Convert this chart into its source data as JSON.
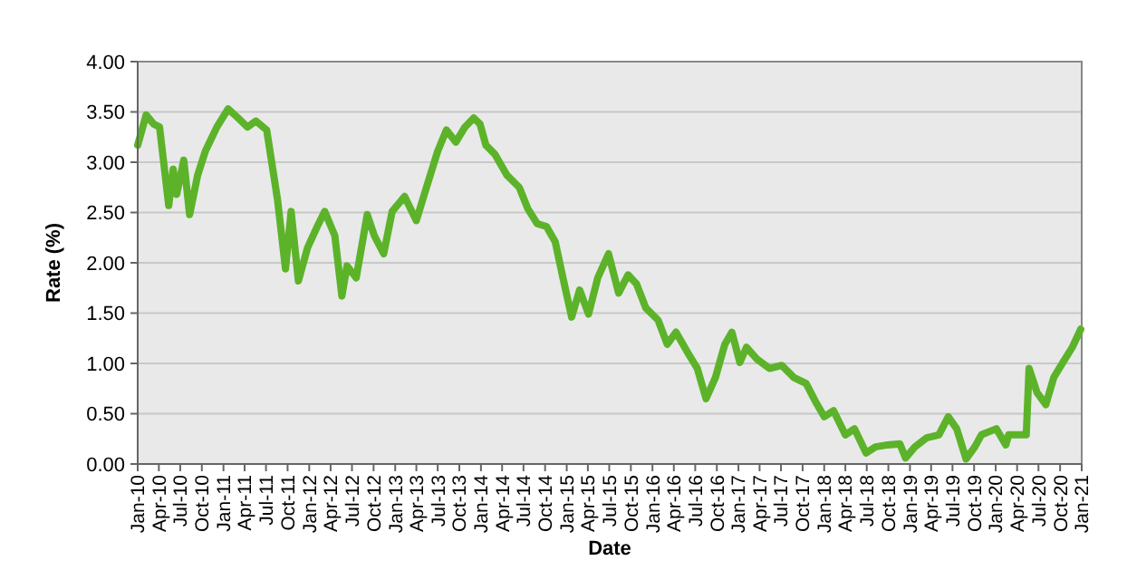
{
  "chart_data": {
    "type": "line",
    "xlabel": "Date",
    "ylabel": "Rate (%)",
    "x": [
      "2010-01-01",
      "2010-02-06",
      "2010-03-10",
      "2010-04-04",
      "2010-04-22",
      "2010-05-13",
      "2010-06-01",
      "2010-06-16",
      "2010-07-16",
      "2010-08-10",
      "2010-09-13",
      "2010-10-16",
      "2010-12-04",
      "2011-01-21",
      "2011-03-04",
      "2011-04-13",
      "2011-05-19",
      "2011-07-04",
      "2011-07-22",
      "2011-08-19",
      "2011-09-22",
      "2011-10-16",
      "2011-11-16",
      "2011-12-25",
      "2012-02-04",
      "2012-03-07",
      "2012-04-19",
      "2012-05-19",
      "2012-06-10",
      "2012-07-19",
      "2012-09-04",
      "2012-10-04",
      "2012-11-13",
      "2012-12-19",
      "2013-02-10",
      "2013-04-01",
      "2013-05-10",
      "2013-07-01",
      "2013-08-07",
      "2013-09-16",
      "2013-10-25",
      "2013-12-01",
      "2013-12-28",
      "2014-01-22",
      "2014-03-01",
      "2014-04-22",
      "2014-06-13",
      "2014-07-19",
      "2014-08-28",
      "2014-10-07",
      "2014-11-13",
      "2014-12-16",
      "2015-01-22",
      "2015-02-25",
      "2015-04-04",
      "2015-05-13",
      "2015-06-28",
      "2015-08-10",
      "2015-09-19",
      "2015-10-25",
      "2015-12-04",
      "2016-01-25",
      "2016-03-04",
      "2016-04-10",
      "2016-06-01",
      "2016-07-10",
      "2016-08-16",
      "2016-09-25",
      "2016-11-04",
      "2016-12-04",
      "2017-01-07",
      "2017-02-04",
      "2017-03-22",
      "2017-05-13",
      "2017-07-04",
      "2017-08-25",
      "2017-10-16",
      "2017-11-25",
      "2018-01-01",
      "2018-02-10",
      "2018-04-01",
      "2018-05-10",
      "2018-06-28",
      "2018-08-07",
      "2018-09-28",
      "2018-11-19",
      "2018-12-13",
      "2019-01-22",
      "2019-03-13",
      "2019-05-04",
      "2019-06-13",
      "2019-07-19",
      "2019-08-28",
      "2019-10-04",
      "2019-11-01",
      "2020-01-04",
      "2020-02-13",
      "2020-02-25",
      "2020-05-10",
      "2020-05-22",
      "2020-06-25",
      "2020-08-01",
      "2020-09-04",
      "2020-10-13",
      "2020-11-22",
      "2020-12-28"
    ],
    "series": [
      {
        "color": "#5cb32a",
        "values": [
          3.17,
          3.47,
          3.38,
          3.35,
          2.99,
          2.57,
          2.93,
          2.68,
          3.02,
          2.48,
          2.87,
          3.11,
          3.35,
          3.53,
          3.44,
          3.35,
          3.41,
          3.32,
          3.05,
          2.63,
          1.94,
          2.51,
          1.82,
          2.15,
          2.36,
          2.51,
          2.27,
          1.67,
          1.97,
          1.85,
          2.48,
          2.27,
          2.09,
          2.51,
          2.66,
          2.42,
          2.72,
          3.11,
          3.32,
          3.2,
          3.35,
          3.44,
          3.38,
          3.17,
          3.08,
          2.87,
          2.75,
          2.54,
          2.39,
          2.36,
          2.21,
          1.85,
          1.46,
          1.73,
          1.49,
          1.85,
          2.09,
          1.7,
          1.88,
          1.79,
          1.55,
          1.43,
          1.19,
          1.31,
          1.1,
          0.95,
          0.65,
          0.86,
          1.19,
          1.31,
          1.01,
          1.16,
          1.04,
          0.95,
          0.98,
          0.86,
          0.8,
          0.62,
          0.47,
          0.53,
          0.29,
          0.35,
          0.11,
          0.17,
          0.19,
          0.2,
          0.06,
          0.17,
          0.26,
          0.29,
          0.47,
          0.35,
          0.05,
          0.17,
          0.29,
          0.35,
          0.19,
          0.29,
          0.29,
          0.95,
          0.71,
          0.59,
          0.86,
          1.01,
          1.16,
          1.34
        ]
      }
    ],
    "xlim": [
      "2010-01-01",
      "2021-01-01"
    ],
    "xticks": [
      {
        "value": "2010-01",
        "label": "Jan-10"
      },
      {
        "value": "2010-04",
        "label": "Apr-10"
      },
      {
        "value": "2010-07",
        "label": "Jul-10"
      },
      {
        "value": "2010-10",
        "label": "Oct-10"
      },
      {
        "value": "2011-01",
        "label": "Jan-11"
      },
      {
        "value": "2011-04",
        "label": "Apr-11"
      },
      {
        "value": "2011-07",
        "label": "Jul-11"
      },
      {
        "value": "2011-10",
        "label": "Oct-11"
      },
      {
        "value": "2012-01",
        "label": "Jan-12"
      },
      {
        "value": "2012-04",
        "label": "Apr-12"
      },
      {
        "value": "2012-07",
        "label": "Jul-12"
      },
      {
        "value": "2012-10",
        "label": "Oct-12"
      },
      {
        "value": "2013-01",
        "label": "Jan-13"
      },
      {
        "value": "2013-04",
        "label": "Apr-13"
      },
      {
        "value": "2013-07",
        "label": "Jul-13"
      },
      {
        "value": "2013-10",
        "label": "Oct-13"
      },
      {
        "value": "2014-01",
        "label": "Jan-14"
      },
      {
        "value": "2014-04",
        "label": "Apr-14"
      },
      {
        "value": "2014-07",
        "label": "Jul-14"
      },
      {
        "value": "2014-10",
        "label": "Oct-14"
      },
      {
        "value": "2015-01",
        "label": "Jan-15"
      },
      {
        "value": "2015-04",
        "label": "Apr-15"
      },
      {
        "value": "2015-07",
        "label": "Jul-15"
      },
      {
        "value": "2015-10",
        "label": "Oct-15"
      },
      {
        "value": "2016-01",
        "label": "Jan-16"
      },
      {
        "value": "2016-04",
        "label": "Apr-16"
      },
      {
        "value": "2016-07",
        "label": "Jul-16"
      },
      {
        "value": "2016-10",
        "label": "Oct-16"
      },
      {
        "value": "2017-01",
        "label": "Jan-17"
      },
      {
        "value": "2017-04",
        "label": "Apr-17"
      },
      {
        "value": "2017-07",
        "label": "Jul-17"
      },
      {
        "value": "2017-10",
        "label": "Oct-17"
      },
      {
        "value": "2018-01",
        "label": "Jan-18"
      },
      {
        "value": "2018-04",
        "label": "Apr-18"
      },
      {
        "value": "2018-07",
        "label": "Jul-18"
      },
      {
        "value": "2018-10",
        "label": "Oct-18"
      },
      {
        "value": "2019-01",
        "label": "Jan-19"
      },
      {
        "value": "2019-04",
        "label": "Apr-19"
      },
      {
        "value": "2019-07",
        "label": "Jul-19"
      },
      {
        "value": "2019-10",
        "label": "Oct-19"
      },
      {
        "value": "2020-01",
        "label": "Jan-20"
      },
      {
        "value": "2020-04",
        "label": "Apr-20"
      },
      {
        "value": "2020-07",
        "label": "Jul-20"
      },
      {
        "value": "2020-10",
        "label": "Oct-20"
      },
      {
        "value": "2021-01",
        "label": "Jan-21"
      }
    ],
    "ylim": [
      0,
      4
    ],
    "yticks": [
      {
        "value": 0,
        "label": "0.00"
      },
      {
        "value": 0.5,
        "label": "0.50"
      },
      {
        "value": 1,
        "label": "1.00"
      },
      {
        "value": 1.5,
        "label": "1.50"
      },
      {
        "value": 2,
        "label": "2.00"
      },
      {
        "value": 2.5,
        "label": "2.50"
      },
      {
        "value": 3,
        "label": "3.00"
      },
      {
        "value": 3.5,
        "label": "3.50"
      },
      {
        "value": 4,
        "label": "4.00"
      }
    ],
    "grid": "y",
    "line_style": "solid"
  }
}
